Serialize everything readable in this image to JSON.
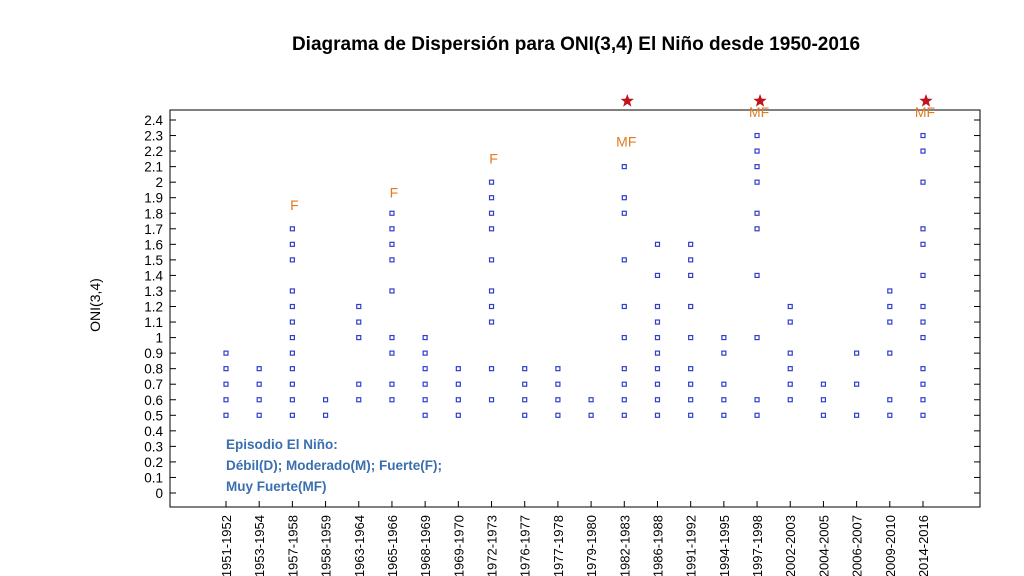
{
  "chart_data": {
    "type": "scatter",
    "title": "Diagrama de Dispersión para ONI(3,4) El Niño desde 1950-2016",
    "ylabel": "ONI(3,4)",
    "xlabel": "",
    "ylim": [
      0,
      2.4
    ],
    "yticks": [
      "0",
      "0.1",
      "0.2",
      "0.3",
      "0.4",
      "0.5",
      "0.6",
      "0.7",
      "0.8",
      "0.9",
      "1",
      "1.1",
      "1.2",
      "1.3",
      "1.4",
      "1.5",
      "1.6",
      "1.7",
      "1.8",
      "1.9",
      "2",
      "2.1",
      "2.2",
      "2.3",
      "2.4"
    ],
    "categories": [
      "1951-1952",
      "1953-1954",
      "1957-1958",
      "1958-1959",
      "1963-1964",
      "1965-1966",
      "1968-1969",
      "1969-1970",
      "1972-1973",
      "1976-1977",
      "1977-1978",
      "1979-1980",
      "1982-1983",
      "1986-1988",
      "1991-1992",
      "1994-1995",
      "1997-1998",
      "2002-2003",
      "2004-2005",
      "2006-2007",
      "2009-2010",
      "2014-2016"
    ],
    "points": [
      [
        0.5,
        0.6,
        0.7,
        0.8,
        0.9
      ],
      [
        0.5,
        0.6,
        0.7,
        0.8
      ],
      [
        0.5,
        0.6,
        0.7,
        0.8,
        0.9,
        1.0,
        1.1,
        1.2,
        1.3,
        1.5,
        1.6,
        1.7
      ],
      [
        0.5,
        0.6
      ],
      [
        0.6,
        0.7,
        1.0,
        1.1,
        1.2
      ],
      [
        0.6,
        0.7,
        0.9,
        1.0,
        1.3,
        1.5,
        1.6,
        1.7,
        1.8
      ],
      [
        0.5,
        0.6,
        0.7,
        0.8,
        0.9,
        1.0
      ],
      [
        0.5,
        0.6,
        0.7,
        0.8
      ],
      [
        0.6,
        0.8,
        1.1,
        1.2,
        1.3,
        1.5,
        1.7,
        1.8,
        1.9,
        2.0
      ],
      [
        0.5,
        0.6,
        0.7,
        0.8
      ],
      [
        0.5,
        0.6,
        0.7,
        0.8
      ],
      [
        0.5,
        0.6
      ],
      [
        0.5,
        0.6,
        0.7,
        0.8,
        1.0,
        1.2,
        1.5,
        1.8,
        1.9,
        2.1
      ],
      [
        0.5,
        0.6,
        0.7,
        0.8,
        0.9,
        1.0,
        1.1,
        1.2,
        1.4,
        1.6
      ],
      [
        0.5,
        0.6,
        0.7,
        0.8,
        1.0,
        1.2,
        1.4,
        1.5,
        1.6
      ],
      [
        0.5,
        0.6,
        0.7,
        0.9,
        1.0
      ],
      [
        0.5,
        0.6,
        1.0,
        1.4,
        1.7,
        1.8,
        2.0,
        2.1,
        2.2,
        2.3
      ],
      [
        0.6,
        0.7,
        0.8,
        0.9,
        1.1,
        1.2
      ],
      [
        0.5,
        0.6,
        0.7
      ],
      [
        0.5,
        0.7,
        0.9
      ],
      [
        0.5,
        0.6,
        0.9,
        1.1,
        1.2,
        1.3
      ],
      [
        0.5,
        0.6,
        0.7,
        0.8,
        1.0,
        1.1,
        1.2,
        1.4,
        1.6,
        1.7,
        2.0,
        2.2,
        2.3
      ]
    ],
    "annotations": [
      {
        "category": "1957-1958",
        "text": "F",
        "y": 1.82
      },
      {
        "category": "1965-1966",
        "text": "F",
        "y": 1.9
      },
      {
        "category": "1972-1973",
        "text": "F",
        "y": 2.12
      },
      {
        "category": "1982-1983",
        "text": "MF",
        "y": 2.23
      },
      {
        "category": "1997-1998",
        "text": "MF",
        "y": 2.42
      },
      {
        "category": "2014-2016",
        "text": "MF",
        "y": 2.42
      }
    ],
    "star_categories": [
      "1982-1983",
      "1997-1998",
      "2014-2016"
    ],
    "legend": {
      "lines": [
        "Episodio El Niño:",
        "Débil(D); Moderado(M); Fuerte(F);",
        "Muy Fuerte(MF)"
      ]
    },
    "colors": {
      "points": "#2f3fc8",
      "annotation": "#e07b22",
      "star": "#c0141c",
      "legend_text": "#3a6fb0"
    },
    "grid": false
  }
}
